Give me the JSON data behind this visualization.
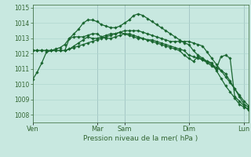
{
  "background_color": "#c8e8e0",
  "grid_color": "#b0d8d0",
  "line_color": "#1a6630",
  "vline_color": "#8899aa",
  "title": "Pression niveau de la mer( hPa )",
  "ylim": [
    1007.5,
    1015.2
  ],
  "yticks": [
    1008,
    1009,
    1010,
    1011,
    1012,
    1013,
    1014,
    1015
  ],
  "day_labels": [
    "Ven",
    "Mar",
    "Sam",
    "Dim",
    "Lun"
  ],
  "day_positions": [
    0,
    14,
    20,
    34,
    46
  ],
  "n_points": 48,
  "series": [
    [
      1010.3,
      1010.8,
      1011.4,
      1012.1,
      1012.2,
      1012.2,
      1012.2,
      1012.2,
      1013.0,
      1013.1,
      1013.1,
      1013.1,
      1013.2,
      1013.3,
      1013.3,
      1013.1,
      1013.0,
      1013.0,
      1013.1,
      1013.2,
      1013.3,
      1013.3,
      1013.2,
      1013.1,
      1013.0,
      1012.9,
      1012.8,
      1012.7,
      1012.6,
      1012.5,
      1012.4,
      1012.3,
      1012.2,
      1011.9,
      1011.7,
      1011.5,
      1011.8,
      1011.6,
      1011.4,
      1011.2,
      1011.0,
      1011.8,
      1011.9,
      1011.7,
      1009.2,
      1008.9,
      1008.6,
      1008.3
    ],
    [
      1012.2,
      1012.2,
      1012.2,
      1012.2,
      1012.2,
      1012.2,
      1012.2,
      1012.2,
      1012.3,
      1012.5,
      1012.7,
      1012.9,
      1013.1,
      1013.0,
      1013.0,
      1013.1,
      1013.2,
      1013.3,
      1013.3,
      1013.4,
      1013.3,
      1013.2,
      1013.1,
      1013.0,
      1013.0,
      1012.9,
      1012.9,
      1012.8,
      1012.7,
      1012.6,
      1012.5,
      1012.4,
      1012.3,
      1012.2,
      1011.9,
      1011.8,
      1011.7,
      1011.6,
      1011.5,
      1011.4,
      1010.9,
      1010.4,
      1009.9,
      1009.5,
      1009.1,
      1008.7,
      1008.5,
      1008.4
    ],
    [
      1012.2,
      1012.2,
      1012.2,
      1012.2,
      1012.2,
      1012.2,
      1012.2,
      1012.2,
      1012.3,
      1012.4,
      1012.5,
      1012.6,
      1012.7,
      1012.8,
      1012.9,
      1013.0,
      1013.1,
      1013.2,
      1013.3,
      1013.4,
      1013.5,
      1013.5,
      1013.5,
      1013.5,
      1013.4,
      1013.3,
      1013.2,
      1013.1,
      1013.0,
      1012.9,
      1012.8,
      1012.8,
      1012.8,
      1012.8,
      1012.8,
      1012.7,
      1012.6,
      1012.5,
      1012.1,
      1011.7,
      1011.3,
      1010.9,
      1010.5,
      1010.1,
      1009.7,
      1009.3,
      1008.9,
      1008.6
    ],
    [
      1012.2,
      1012.2,
      1012.2,
      1012.2,
      1012.2,
      1012.3,
      1012.4,
      1012.6,
      1013.0,
      1013.3,
      1013.6,
      1014.0,
      1014.2,
      1014.2,
      1014.1,
      1013.9,
      1013.8,
      1013.7,
      1013.7,
      1013.8,
      1014.0,
      1014.2,
      1014.5,
      1014.6,
      1014.5,
      1014.3,
      1014.1,
      1013.9,
      1013.7,
      1013.5,
      1013.3,
      1013.1,
      1012.9,
      1012.7,
      1012.6,
      1012.2,
      1011.9,
      1011.7,
      1011.5,
      1011.3,
      1011.1,
      1010.9,
      1010.7,
      1010.2,
      1009.7,
      1009.2,
      1008.7,
      1008.5
    ]
  ]
}
